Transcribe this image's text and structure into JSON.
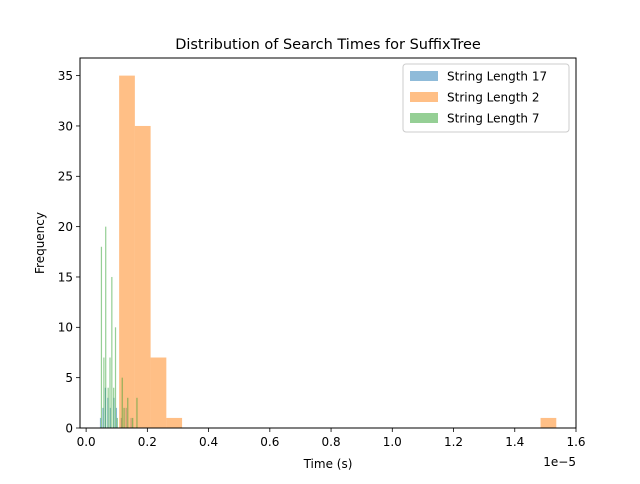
{
  "chart_data": {
    "type": "histogram",
    "title": "Distribution of Search Times for SuffixTree",
    "xlabel": "Time (s)",
    "ylabel": "Frequency",
    "x_scale_label": "1e−5",
    "x_scale": 1e-05,
    "xlim": [
      -0.02,
      1.6
    ],
    "ylim": [
      0,
      36.75
    ],
    "xticks": [
      0.0,
      0.2,
      0.4,
      0.6,
      0.8,
      1.0,
      1.2,
      1.4,
      1.6
    ],
    "xtick_labels": [
      "0.0",
      "0.2",
      "0.4",
      "0.6",
      "0.8",
      "1.0",
      "1.2",
      "1.4",
      "1.6"
    ],
    "yticks": [
      0,
      5,
      10,
      15,
      20,
      25,
      30,
      35
    ],
    "ytick_labels": [
      "0",
      "5",
      "10",
      "15",
      "20",
      "25",
      "30",
      "35"
    ],
    "grid": false,
    "legend_position": "upper right",
    "series": [
      {
        "name": "String Length 17",
        "color": "#1f77b4",
        "alpha": 0.5,
        "bins": [
          {
            "x0": 0.045,
            "x1": 0.049,
            "count": 1
          },
          {
            "x0": 0.053,
            "x1": 0.057,
            "count": 2
          },
          {
            "x0": 0.061,
            "x1": 0.065,
            "count": 4
          },
          {
            "x0": 0.069,
            "x1": 0.073,
            "count": 3
          },
          {
            "x0": 0.077,
            "x1": 0.081,
            "count": 2
          },
          {
            "x0": 0.089,
            "x1": 0.093,
            "count": 3
          },
          {
            "x0": 0.097,
            "x1": 0.101,
            "count": 2
          },
          {
            "x0": 0.113,
            "x1": 0.117,
            "count": 1
          },
          {
            "x0": 0.129,
            "x1": 0.133,
            "count": 2
          },
          {
            "x0": 0.145,
            "x1": 0.149,
            "count": 1
          }
        ]
      },
      {
        "name": "String Length 2",
        "color": "#ff7f0e",
        "alpha": 0.5,
        "bins": [
          {
            "x0": 0.1078,
            "x1": 0.1592,
            "count": 35
          },
          {
            "x0": 0.1592,
            "x1": 0.2106,
            "count": 30
          },
          {
            "x0": 0.2106,
            "x1": 0.262,
            "count": 7
          },
          {
            "x0": 0.262,
            "x1": 0.3134,
            "count": 1
          },
          {
            "x0": 1.4842,
            "x1": 1.5356,
            "count": 1
          }
        ]
      },
      {
        "name": "String Length 7",
        "color": "#2ca02c",
        "alpha": 0.5,
        "bins": [
          {
            "x0": 0.048,
            "x1": 0.052,
            "count": 18
          },
          {
            "x0": 0.056,
            "x1": 0.06,
            "count": 7
          },
          {
            "x0": 0.062,
            "x1": 0.066,
            "count": 20
          },
          {
            "x0": 0.07,
            "x1": 0.074,
            "count": 4
          },
          {
            "x0": 0.076,
            "x1": 0.08,
            "count": 7
          },
          {
            "x0": 0.082,
            "x1": 0.086,
            "count": 15
          },
          {
            "x0": 0.088,
            "x1": 0.092,
            "count": 4
          },
          {
            "x0": 0.094,
            "x1": 0.098,
            "count": 10
          },
          {
            "x0": 0.1,
            "x1": 0.104,
            "count": 1
          },
          {
            "x0": 0.116,
            "x1": 0.12,
            "count": 5
          },
          {
            "x0": 0.122,
            "x1": 0.126,
            "count": 2
          },
          {
            "x0": 0.134,
            "x1": 0.138,
            "count": 3
          },
          {
            "x0": 0.15,
            "x1": 0.154,
            "count": 1
          },
          {
            "x0": 0.164,
            "x1": 0.168,
            "count": 3
          }
        ]
      }
    ]
  }
}
